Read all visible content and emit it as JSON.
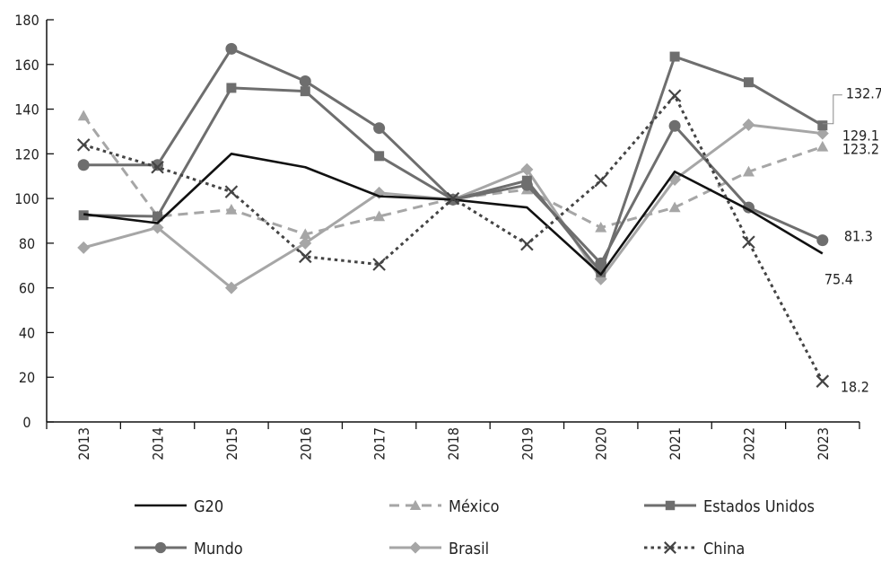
{
  "chart_data": {
    "type": "line",
    "title": "",
    "xlabel": "",
    "ylabel": "",
    "ylim": [
      0,
      180
    ],
    "yticks": [
      0,
      20,
      40,
      60,
      80,
      100,
      120,
      140,
      160,
      180
    ],
    "categories": [
      "2013",
      "2014",
      "2015",
      "2016",
      "2017",
      "2018",
      "2019",
      "2020",
      "2021",
      "2022",
      "2023"
    ],
    "grid": false,
    "legend_position": "bottom",
    "series": [
      {
        "name": "G20",
        "color": "#111111",
        "dash": "solid",
        "marker": "none",
        "values": [
          93,
          89,
          120,
          114,
          101,
          99.5,
          96,
          66,
          112,
          95,
          75.4
        ],
        "end_label": "75.4"
      },
      {
        "name": "México",
        "color": "#a6a6a6",
        "dash": "dashed",
        "marker": "triangle",
        "values": [
          137,
          92,
          95,
          84,
          92,
          100,
          104,
          87,
          96,
          112,
          123.2
        ],
        "end_label": "123.2"
      },
      {
        "name": "Estados Unidos",
        "color": "#6e6e6e",
        "dash": "solid",
        "marker": "square",
        "values": [
          92.5,
          92,
          149.5,
          148,
          119,
          99.5,
          108,
          67,
          163.5,
          152,
          132.7
        ],
        "end_label": "132.7"
      },
      {
        "name": "Mundo",
        "color": "#6e6e6e",
        "dash": "solid",
        "marker": "circle",
        "values": [
          115,
          115,
          167,
          152.5,
          131.5,
          99.5,
          106,
          71,
          132.5,
          96,
          81.3
        ],
        "end_label": "81.3"
      },
      {
        "name": "Brasil",
        "color": "#a6a6a6",
        "dash": "solid",
        "marker": "diamond",
        "values": [
          78,
          87,
          60,
          80,
          102.5,
          99.5,
          113,
          64,
          108.5,
          133,
          129.1
        ],
        "end_label": "129.1"
      },
      {
        "name": "China",
        "color": "#444444",
        "dash": "dotted",
        "marker": "x",
        "values": [
          124,
          114,
          103,
          74,
          70.5,
          100,
          79.5,
          108,
          146,
          80.5,
          18.2
        ],
        "end_label": "18.2"
      }
    ]
  }
}
